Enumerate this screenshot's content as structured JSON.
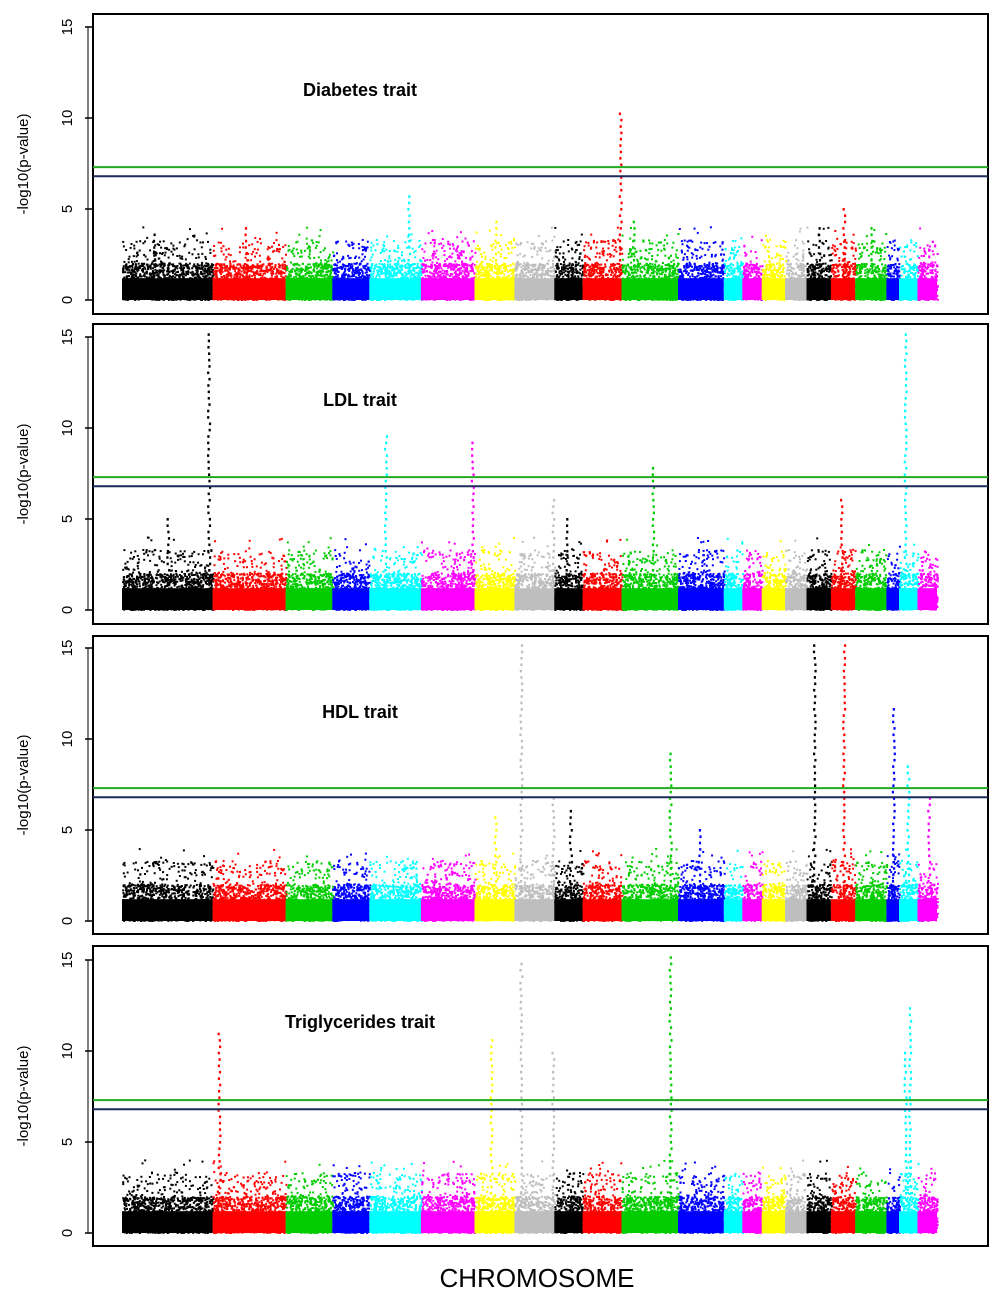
{
  "chart_data": {
    "type": "scatter",
    "subtype": "manhattan",
    "xlabel": "CHROMOSOME",
    "chromosome_count": 22,
    "chromosome_colors": [
      "#000000",
      "#ff0000",
      "#00cc00",
      "#0000ff",
      "#00ffff",
      "#ff00ff",
      "#ffff00",
      "#bebebe"
    ],
    "threshold_lines": [
      {
        "value": 7.3,
        "color": "#22aa22"
      },
      {
        "value": 6.8,
        "color": "#1a2a5a"
      }
    ],
    "panels": [
      {
        "title": "Diabetes trait",
        "ylabel": "-log10(p-value)",
        "ylim": [
          0,
          15
        ],
        "yticks": [
          "0",
          "5",
          "10",
          "15"
        ],
        "peaks": [
          {
            "chr": 1,
            "pos": 0.35,
            "value": 3.8
          },
          {
            "chr": 2,
            "pos": 0.45,
            "value": 4.3
          },
          {
            "chr": 5,
            "pos": 0.75,
            "value": 6.0
          },
          {
            "chr": 7,
            "pos": 0.5,
            "value": 4.5
          },
          {
            "chr": 10,
            "pos": 0.95,
            "value": 10.3
          },
          {
            "chr": 11,
            "pos": 0.2,
            "value": 4.4
          },
          {
            "chr": 17,
            "pos": 0.5,
            "value": 4.0
          },
          {
            "chr": 18,
            "pos": 0.5,
            "value": 5.2
          },
          {
            "chr": 19,
            "pos": 0.5,
            "value": 4.1
          }
        ]
      },
      {
        "title": "LDL trait",
        "ylabel": "-log10(p-value)",
        "ylim": [
          0,
          15
        ],
        "yticks": [
          "0",
          "5",
          "10",
          "15"
        ],
        "peaks": [
          {
            "chr": 1,
            "pos": 0.5,
            "value": 5.0
          },
          {
            "chr": 1,
            "pos": 0.95,
            "value": 15.3
          },
          {
            "chr": 5,
            "pos": 0.3,
            "value": 9.6
          },
          {
            "chr": 6,
            "pos": 0.95,
            "value": 9.2
          },
          {
            "chr": 8,
            "pos": 0.95,
            "value": 6.3
          },
          {
            "chr": 9,
            "pos": 0.4,
            "value": 5.0
          },
          {
            "chr": 11,
            "pos": 0.55,
            "value": 7.8
          },
          {
            "chr": 18,
            "pos": 0.4,
            "value": 6.3
          },
          {
            "chr": 21,
            "pos": 0.3,
            "value": 15.3
          }
        ]
      },
      {
        "title": "HDL trait",
        "ylabel": "-log10(p-value)",
        "ylim": [
          0,
          15
        ],
        "yticks": [
          "0",
          "5",
          "10",
          "15"
        ],
        "peaks": [
          {
            "chr": 7,
            "pos": 0.5,
            "value": 5.7
          },
          {
            "chr": 8,
            "pos": 0.15,
            "value": 15.3
          },
          {
            "chr": 8,
            "pos": 0.95,
            "value": 7.0
          },
          {
            "chr": 9,
            "pos": 0.55,
            "value": 6.1
          },
          {
            "chr": 11,
            "pos": 0.85,
            "value": 9.3
          },
          {
            "chr": 12,
            "pos": 0.45,
            "value": 5.3
          },
          {
            "chr": 17,
            "pos": 0.3,
            "value": 15.3
          },
          {
            "chr": 18,
            "pos": 0.5,
            "value": 15.3
          },
          {
            "chr": 20,
            "pos": 0.5,
            "value": 11.8
          },
          {
            "chr": 21,
            "pos": 0.45,
            "value": 8.5
          },
          {
            "chr": 22,
            "pos": 0.55,
            "value": 7.0
          }
        ]
      },
      {
        "title": "Triglycerides trait",
        "ylabel": "-log10(p-value)",
        "ylim": [
          0,
          15
        ],
        "yticks": [
          "0",
          "5",
          "10",
          "15"
        ],
        "peaks": [
          {
            "chr": 2,
            "pos": 0.08,
            "value": 11.2
          },
          {
            "chr": 7,
            "pos": 0.4,
            "value": 10.8
          },
          {
            "chr": 8,
            "pos": 0.15,
            "value": 14.8
          },
          {
            "chr": 8,
            "pos": 0.95,
            "value": 10.0
          },
          {
            "chr": 11,
            "pos": 0.85,
            "value": 15.3
          },
          {
            "chr": 21,
            "pos": 0.55,
            "value": 12.6
          },
          {
            "chr": 21,
            "pos": 0.3,
            "value": 9.9
          }
        ]
      }
    ]
  }
}
